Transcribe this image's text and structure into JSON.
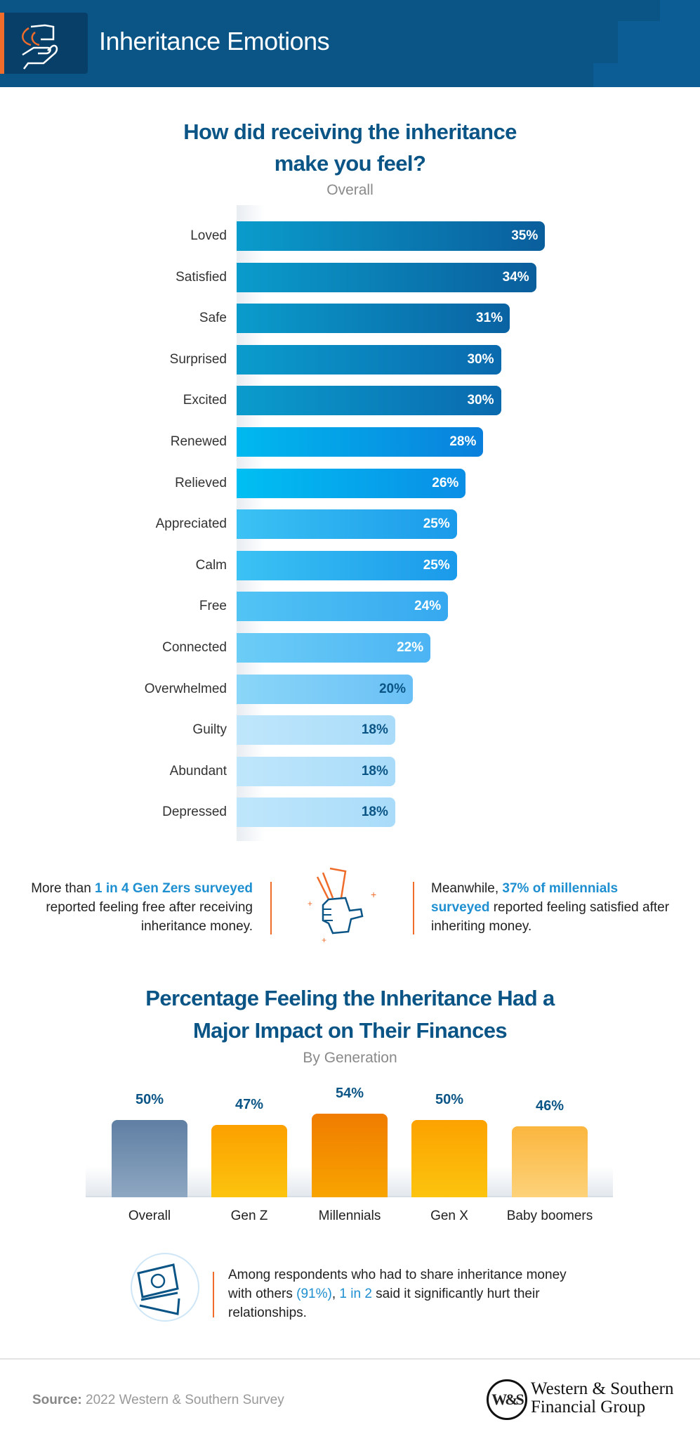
{
  "header": {
    "title": "Inheritance Emotions",
    "icon": "hands-money-icon"
  },
  "colors": {
    "brand": "#0b5586",
    "accent": "#ef6c2b",
    "highlight": "#1e8fd0"
  },
  "chart_data": [
    {
      "type": "bar",
      "orientation": "horizontal",
      "title": "How did receiving the inheritance make you feel?",
      "title_line1": "How did receiving the inheritance",
      "title_line2": "make you feel?",
      "subtitle": "Overall",
      "categories": [
        "Loved",
        "Satisfied",
        "Safe",
        "Surprised",
        "Excited",
        "Renewed",
        "Relieved",
        "Appreciated",
        "Calm",
        "Free",
        "Connected",
        "Overwhelmed",
        "Guilty",
        "Abundant",
        "Depressed"
      ],
      "values": [
        35,
        34,
        31,
        30,
        30,
        28,
        26,
        25,
        25,
        24,
        22,
        20,
        18,
        18,
        18
      ],
      "value_labels": [
        "35%",
        "34%",
        "31%",
        "30%",
        "30%",
        "28%",
        "26%",
        "25%",
        "25%",
        "24%",
        "22%",
        "20%",
        "18%",
        "18%",
        "18%"
      ],
      "unit": "%"
    },
    {
      "type": "bar",
      "orientation": "vertical",
      "title": "Percentage Feeling the Inheritance Had a Major Impact on Their Finances",
      "title_line1": "Percentage Feeling the Inheritance Had a",
      "title_line2": "Major Impact on Their Finances",
      "subtitle": "By Generation",
      "categories": [
        "Overall",
        "Gen Z",
        "Millennials",
        "Gen X",
        "Baby boomers"
      ],
      "values": [
        50,
        47,
        54,
        50,
        46
      ],
      "value_labels": [
        "50%",
        "47%",
        "54%",
        "50%",
        "46%"
      ],
      "unit": "%"
    }
  ],
  "callouts": {
    "left": {
      "pre": "More than ",
      "hl": "1 in 4 Gen Zers surveyed",
      "post": " reported feeling free after receiving inheritance money."
    },
    "center_icon": "fist-money-icon",
    "right": {
      "pre": "Meanwhile, ",
      "hl": "37% of millennials surveyed",
      "post": " reported feeling satisfied after inheriting money."
    },
    "bottom": {
      "pre": "Among respondents who had to share inheritance money with others ",
      "hl1": "(91%)",
      "mid": ", ",
      "hl2": "1 in 2",
      "post": " said it significantly hurt their relationships.",
      "icon": "cash-stack-icon"
    }
  },
  "footer": {
    "source_label": "Source:",
    "source_text": " 2022 Western & Southern Survey",
    "logo_mark": "W&S",
    "logo_line1": "Western & Southern",
    "logo_line2": "Financial Group"
  }
}
